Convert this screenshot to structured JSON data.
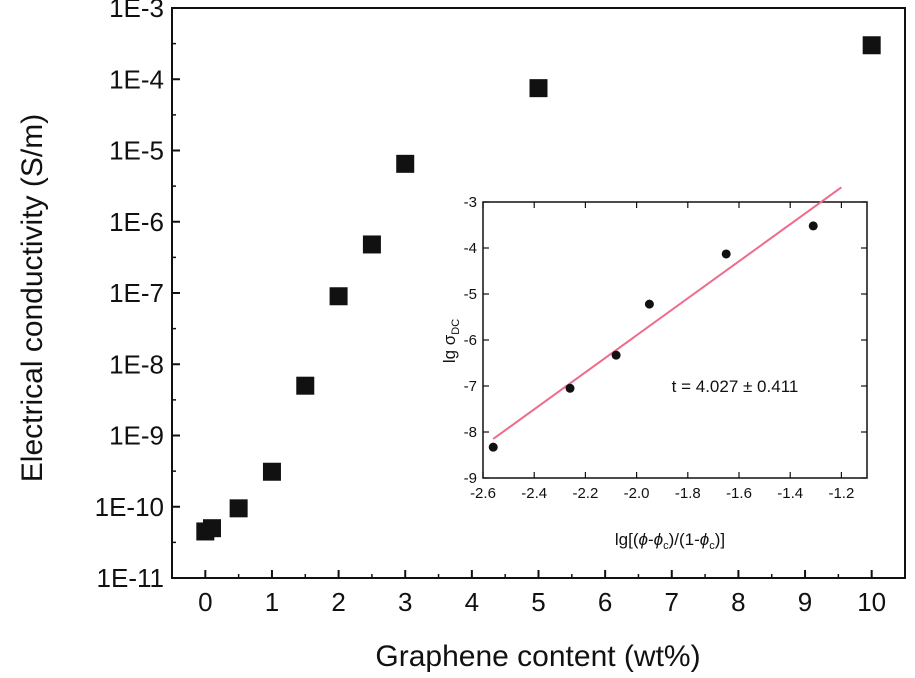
{
  "chart_data": [
    {
      "type": "scatter",
      "xlabel": "Graphene content (wt%)",
      "ylabel": "Electrical conductivity (S/m)",
      "xlim": [
        -0.5,
        10.5
      ],
      "xticks": [
        "0",
        "1",
        "2",
        "3",
        "4",
        "5",
        "6",
        "7",
        "8",
        "9",
        "10"
      ],
      "yscale": "log",
      "ylim": [
        1e-11,
        0.001
      ],
      "yticks": [
        "1E-11",
        "1E-10",
        "1E-9",
        "1E-8",
        "1E-7",
        "1E-6",
        "1E-5",
        "1E-4",
        "1E-3"
      ],
      "marker": "filled square",
      "color": "#111111",
      "points": [
        {
          "x": 0,
          "y": 4.5e-11
        },
        {
          "x": 0.1,
          "y": 5e-11
        },
        {
          "x": 0.5,
          "y": 9.5e-11
        },
        {
          "x": 1,
          "y": 3.1e-10
        },
        {
          "x": 1.5,
          "y": 5e-09
        },
        {
          "x": 2,
          "y": 9e-08
        },
        {
          "x": 2.5,
          "y": 4.8e-07
        },
        {
          "x": 3,
          "y": 6.5e-06
        },
        {
          "x": 5,
          "y": 7.5e-05
        },
        {
          "x": 10,
          "y": 0.0003
        }
      ]
    },
    {
      "type": "scatter",
      "role": "inset",
      "xlabel": "lg[(ϕ-ϕc)/(1-ϕc)]",
      "ylabel": "lg σDC",
      "xlim": [
        -2.6,
        -1.1
      ],
      "ylim": [
        -9,
        -3
      ],
      "xticks": [
        "-2.6",
        "-2.4",
        "-2.2",
        "-2.0",
        "-1.8",
        "-1.6",
        "-1.4",
        "-1.2"
      ],
      "yticks": [
        "-3",
        "-4",
        "-5",
        "-6",
        "-7",
        "-8",
        "-9"
      ],
      "marker": "filled circle",
      "points": [
        {
          "x": -2.56,
          "y": -8.33
        },
        {
          "x": -2.26,
          "y": -7.05
        },
        {
          "x": -2.08,
          "y": -6.33
        },
        {
          "x": -1.95,
          "y": -5.22
        },
        {
          "x": -1.65,
          "y": -4.13
        },
        {
          "x": -1.31,
          "y": -3.52
        }
      ],
      "fit_line": {
        "x": [
          -2.56,
          -1.2
        ],
        "y": [
          -8.15,
          -2.68
        ],
        "color": "#ee6b8b"
      },
      "annotation": "t = 4.027 ± 0.411"
    }
  ]
}
